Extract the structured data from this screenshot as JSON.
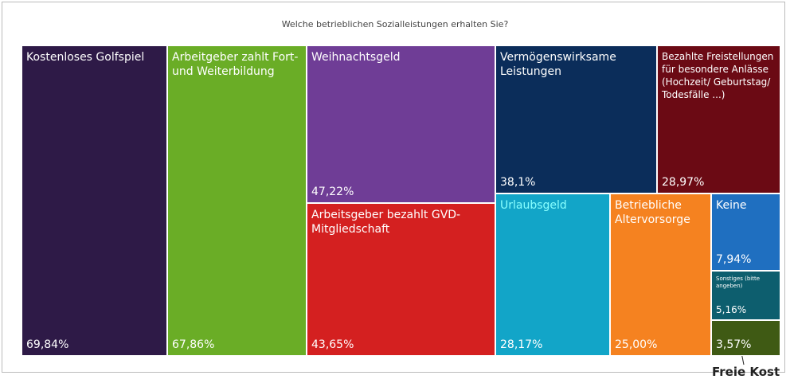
{
  "chart_data": {
    "type": "treemap",
    "title": "Welche betrieblichen Sozialleistungen erhalten Sie?",
    "categories": [
      "Kostenloses Golfspiel",
      "Arbeitgeber zahlt Fort- und Weiterbildung",
      "Weihnachtsgeld",
      "Vermögenswirksame Leistungen",
      "Bezahlte Freistellungen für besondere Anlässe (Hochzeit/ Geburtstag/ Todesfälle ...)",
      "Arbeitsgeber bezahlt GVD-Mitgliedschaft",
      "Urlaubsgeld",
      "Betriebliche Altervorsorge",
      "Keine",
      "Sonstiges (bitte angeben)",
      "Freie Kost"
    ],
    "values": [
      69.84,
      67.86,
      47.22,
      38.1,
      28.97,
      43.65,
      28.17,
      25.0,
      7.94,
      5.16,
      3.57
    ],
    "value_labels": [
      "69,84%",
      "67,86%",
      "47,22%",
      "38,1%",
      "28,97%",
      "43,65%",
      "28,17%",
      "25,00%",
      "7,94%",
      "5,16%",
      "3,57%"
    ],
    "colors": [
      "#2e1a47",
      "#6aad26",
      "#6f3d96",
      "#0b2d5a",
      "#6b0a14",
      "#d42020",
      "#12a5c8",
      "#f58220",
      "#1f6fc0",
      "#0d5e6e",
      "#3f5a14"
    ]
  }
}
